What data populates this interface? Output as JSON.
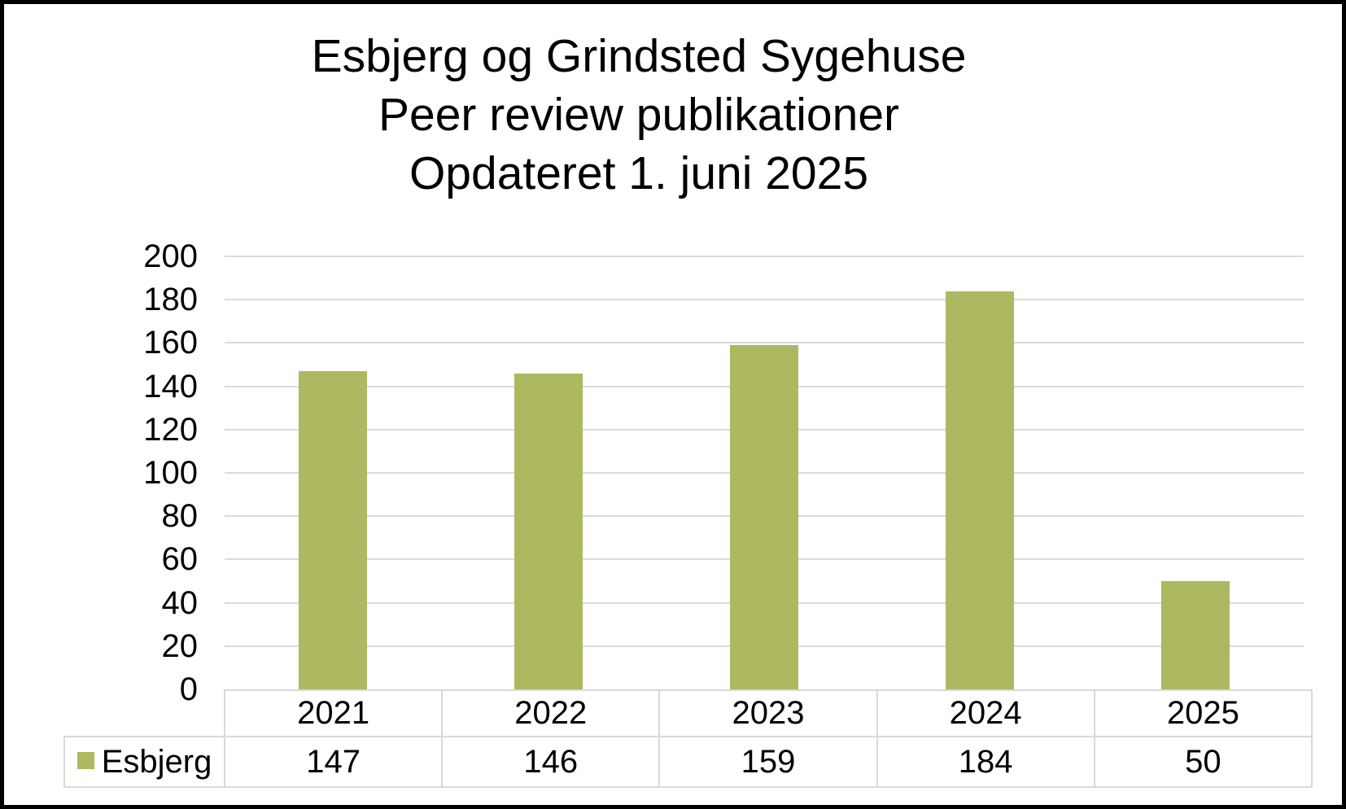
{
  "title": {
    "line1": "Esbjerg og Grindsted Sygehuse",
    "line2": "Peer review publikationer",
    "line3": "Opdateret 1. juni 2025"
  },
  "chart_data": {
    "type": "bar",
    "title": "Esbjerg og Grindsted Sygehuse\nPeer review publikationer\nOpdateret 1. juni 2025",
    "categories": [
      "2021",
      "2022",
      "2023",
      "2024",
      "2025"
    ],
    "series": [
      {
        "name": "Esbjerg",
        "values": [
          147,
          146,
          159,
          184,
          50
        ]
      }
    ],
    "xlabel": "",
    "ylabel": "",
    "ylim": [
      0,
      200
    ],
    "ytick_step": 20,
    "grid": true,
    "legend_position": "bottom-left-table-cell",
    "colors": {
      "bar": "#ADB861",
      "gridline": "#DADADA",
      "table_border": "#D9D9D9",
      "text": "#000000",
      "frame": "#000000",
      "background": "#FFFFFF"
    }
  }
}
